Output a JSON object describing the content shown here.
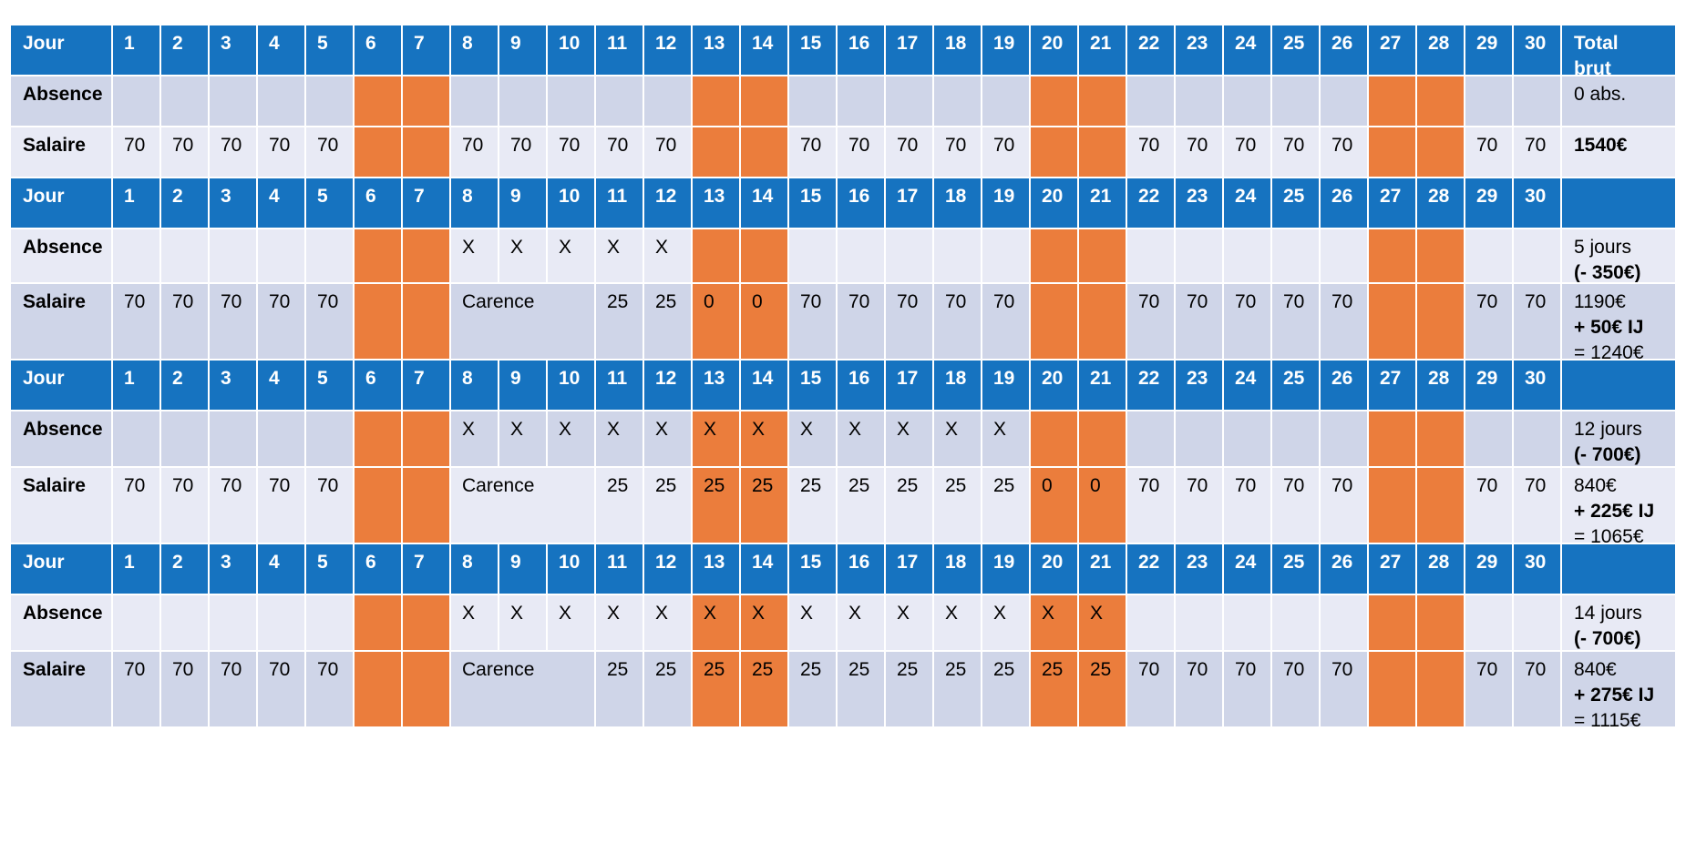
{
  "colors": {
    "header": "#1673c0",
    "row_dark": "#cfd5e8",
    "row_light": "#e8eaf5",
    "weekend": "#eb7d3c"
  },
  "labels": {
    "jour": "Jour",
    "absence": "Absence",
    "salaire": "Salaire",
    "total_brut_1": "Total",
    "total_brut_2": "brut",
    "carence": "Carence"
  },
  "days": [
    "1",
    "2",
    "3",
    "4",
    "5",
    "6",
    "7",
    "8",
    "9",
    "10",
    "11",
    "12",
    "13",
    "14",
    "15",
    "16",
    "17",
    "18",
    "19",
    "20",
    "21",
    "22",
    "23",
    "24",
    "25",
    "26",
    "27",
    "28",
    "29",
    "30"
  ],
  "blocks": [
    {
      "absence": [
        "",
        "",
        "",
        "",
        "",
        "",
        "",
        "",
        "",
        "",
        "",
        "",
        "",
        "",
        "",
        "",
        "",
        "",
        "",
        "",
        "",
        "",
        "",
        "",
        "",
        "",
        "",
        "",
        "",
        ""
      ],
      "salaire": [
        "70",
        "70",
        "70",
        "70",
        "70",
        "",
        "",
        "70",
        "70",
        "70",
        "70",
        "70",
        "",
        "",
        "70",
        "70",
        "70",
        "70",
        "70",
        "",
        "",
        "70",
        "70",
        "70",
        "70",
        "70",
        "",
        "",
        "70",
        "70"
      ],
      "total_absence": "0 abs.",
      "total_salaire": "1540€"
    },
    {
      "absence": [
        "",
        "",
        "",
        "",
        "",
        "",
        "",
        "X",
        "X",
        "X",
        "X",
        "X",
        "",
        "",
        "",
        "",
        "",
        "",
        "",
        "",
        "",
        "",
        "",
        "",
        "",
        "",
        "",
        "",
        "",
        ""
      ],
      "salaire_a": [
        "70",
        "70",
        "70",
        "70",
        "70",
        "",
        ""
      ],
      "salaire_b": [
        "25",
        "25",
        "0",
        "0",
        "70",
        "70",
        "70",
        "70",
        "70",
        "",
        "",
        "70",
        "70",
        "70",
        "70",
        "70",
        "",
        "",
        "70",
        "70"
      ],
      "total_absence_1": "5 jours",
      "total_absence_2": "(- 350€)",
      "total_salaire_1": "1190€",
      "total_salaire_2": "+ 50€ IJ",
      "total_salaire_3": "= 1240€"
    },
    {
      "absence": [
        "",
        "",
        "",
        "",
        "",
        "",
        "",
        "X",
        "X",
        "X",
        "X",
        "X",
        "X",
        "X",
        "X",
        "X",
        "X",
        "X",
        "X",
        "",
        "",
        "",
        "",
        "",
        "",
        "",
        "",
        "",
        "",
        ""
      ],
      "salaire_a": [
        "70",
        "70",
        "70",
        "70",
        "70",
        "",
        ""
      ],
      "salaire_b": [
        "25",
        "25",
        "25",
        "25",
        "25",
        "25",
        "25",
        "25",
        "25",
        "0",
        "0",
        "70",
        "70",
        "70",
        "70",
        "70",
        "",
        "",
        "70",
        "70"
      ],
      "total_absence_1": "12 jours",
      "total_absence_2": "(- 700€)",
      "total_salaire_1": "840€",
      "total_salaire_2": "+ 225€ IJ",
      "total_salaire_3": "= 1065€"
    },
    {
      "absence": [
        "",
        "",
        "",
        "",
        "",
        "",
        "",
        "X",
        "X",
        "X",
        "X",
        "X",
        "X",
        "X",
        "X",
        "X",
        "X",
        "X",
        "X",
        "X",
        "X",
        "",
        "",
        "",
        "",
        "",
        "",
        "",
        "",
        ""
      ],
      "salaire_a": [
        "70",
        "70",
        "70",
        "70",
        "70",
        "",
        ""
      ],
      "salaire_b": [
        "25",
        "25",
        "25",
        "25",
        "25",
        "25",
        "25",
        "25",
        "25",
        "25",
        "25",
        "70",
        "70",
        "70",
        "70",
        "70",
        "",
        "",
        "70",
        "70"
      ],
      "total_absence_1": "14 jours",
      "total_absence_2": "(- 700€)",
      "total_salaire_1": "840€",
      "total_salaire_2": "+ 275€ IJ",
      "total_salaire_3": "= 1115€"
    }
  ]
}
